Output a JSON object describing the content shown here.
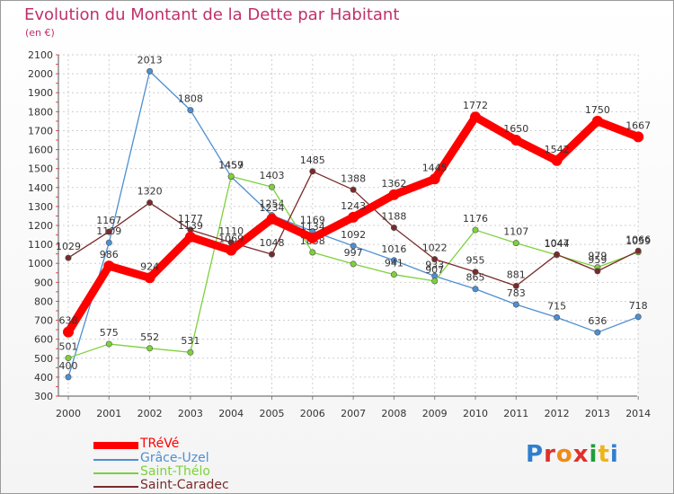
{
  "header": {
    "title": "Evolution du Montant de la Dette par Habitant",
    "unit": "(en €)"
  },
  "logo": {
    "text": "Proxiti",
    "colors": [
      "#2f7fd0",
      "#e0302a",
      "#f08a1a",
      "#e0302a",
      "#1f9e3a",
      "#f0b31a",
      "#2f7fd0"
    ]
  },
  "chart_data": {
    "type": "line",
    "x": [
      "2000",
      "2001",
      "2002",
      "2003",
      "2004",
      "2005",
      "2006",
      "2007",
      "2008",
      "2009",
      "2010",
      "2011",
      "2012",
      "2013",
      "2014"
    ],
    "ylim": [
      300,
      2100
    ],
    "yticks": [
      300,
      400,
      500,
      600,
      700,
      800,
      900,
      1000,
      1100,
      1200,
      1300,
      1400,
      1500,
      1600,
      1700,
      1800,
      1900,
      2000,
      2100
    ],
    "grid": true,
    "legend_position": "bottom-left",
    "series": [
      {
        "name": "TRéVé",
        "color": "#ff0000",
        "values": [
          638,
          986,
          924,
          1139,
          1069,
          1234,
          1134,
          1243,
          1362,
          1445,
          1772,
          1650,
          1542,
          1750,
          1667
        ]
      },
      {
        "name": "Grâce-Uzel",
        "color": "#4d8fd1",
        "values": [
          400,
          1109,
          2013,
          1808,
          1457,
          1254,
          1169,
          1092,
          1016,
          933,
          865,
          783,
          715,
          636,
          718
        ]
      },
      {
        "name": "Saint-Thélo",
        "color": "#7dd13b",
        "values": [
          501,
          575,
          552,
          531,
          1459,
          1403,
          1058,
          997,
          941,
          907,
          1176,
          1107,
          1044,
          979,
          1059
        ]
      },
      {
        "name": "Saint-Caradec",
        "color": "#7a2a2a",
        "values": [
          1029,
          1167,
          1320,
          1177,
          1110,
          1048,
          1485,
          1388,
          1188,
          1022,
          955,
          881,
          1047,
          959,
          1066
        ]
      }
    ]
  }
}
